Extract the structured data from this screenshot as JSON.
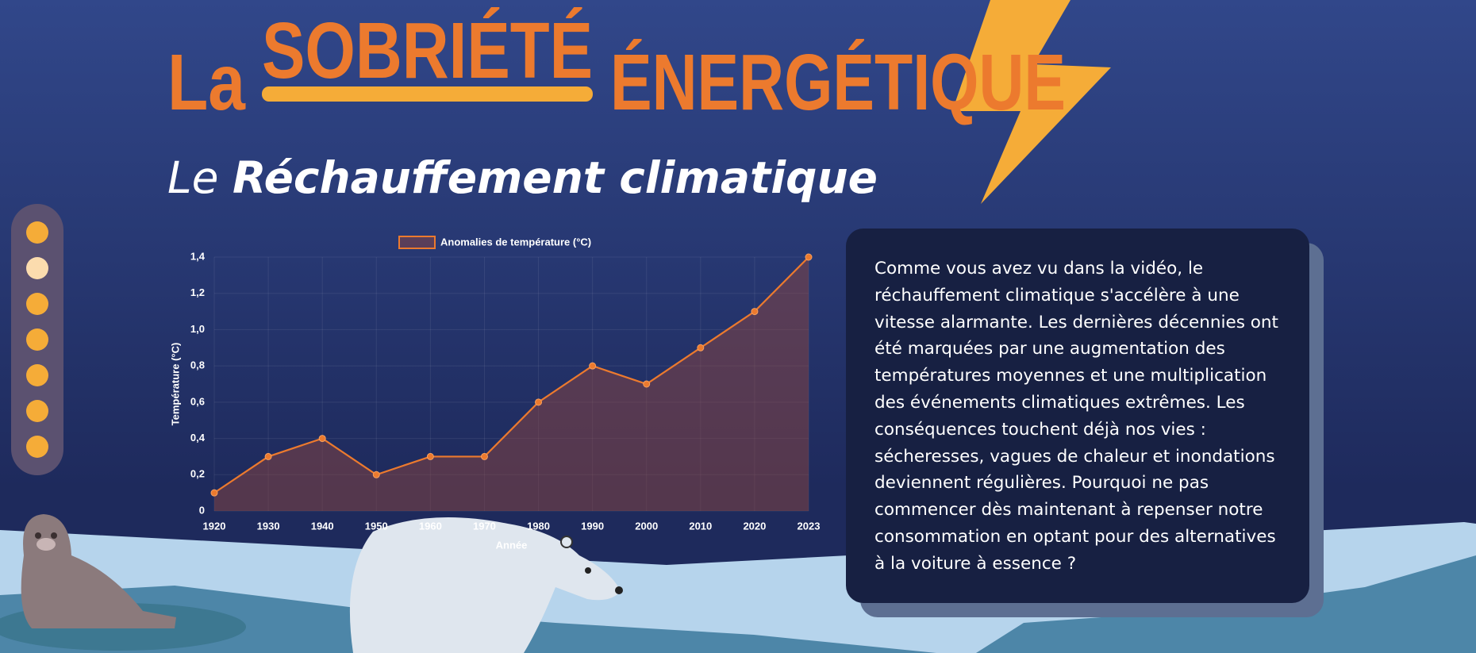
{
  "header": {
    "word1": "La",
    "word2": "SOBRIÉTÉ",
    "word3": "ÉNERGÉTIQUE"
  },
  "subtitle": {
    "lead": "Le",
    "main": "Réchauffement climatique"
  },
  "chart_data": {
    "type": "line",
    "legend": "Anomalies de température (°C)",
    "x_label": "Année",
    "y_label": "Température (°C)",
    "categories": [
      "1920",
      "1930",
      "1940",
      "1950",
      "1960",
      "1970",
      "1980",
      "1990",
      "2000",
      "2010",
      "2020",
      "2023"
    ],
    "values": [
      0.1,
      0.3,
      0.4,
      0.2,
      0.3,
      0.3,
      0.6,
      0.8,
      0.7,
      0.9,
      1.1,
      1.4
    ],
    "color": "#ec7a2e",
    "fill": "rgba(150,70,60,0.45)",
    "ylim": [
      0,
      1.4
    ],
    "yticks": [
      0,
      {
        "value": 0.2,
        "label": "0,2"
      },
      {
        "value": 0.4,
        "label": "0,4"
      },
      {
        "value": 0.6,
        "label": "0,6"
      },
      {
        "value": 0.8,
        "label": "0,8"
      },
      {
        "value": 1.0,
        "label": "1,0"
      },
      {
        "value": 1.2,
        "label": "1,2"
      },
      {
        "value": 1.4,
        "label": "1,4"
      }
    ],
    "grid": true
  },
  "text_box": {
    "body": "Comme vous avez vu dans la vidéo, le réchauffement climatique s'accélère à une vitesse alarmante. Les dernières décennies ont été marquées par une augmentation des températures moyennes et une multiplication des événements climatiques extrêmes. Les conséquences touchent déjà nos vies : sécheresses, vagues de chaleur et inondations deviennent régulières. Pourquoi ne pas commencer dès maintenant à repenser notre consommation en optant pour des alternatives à la voiture à essence ?"
  }
}
